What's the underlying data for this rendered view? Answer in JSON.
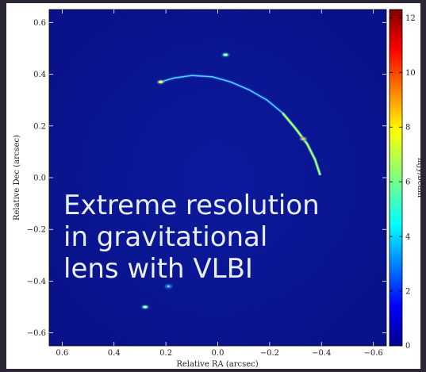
{
  "chart_data": {
    "type": "heatmap",
    "xlabel": "Relative RA (arcsec)",
    "ylabel": "Relative Dec (arcsec)",
    "x_ticks": [
      "0.6",
      "0.4",
      "0.2",
      "0.0",
      "−0.2",
      "−0.4",
      "−0.6"
    ],
    "y_ticks": [
      "0.6",
      "0.4",
      "0.2",
      "0.0",
      "−0.2",
      "−0.4",
      "−0.6"
    ],
    "xlim": [
      0.65,
      -0.65
    ],
    "ylim": [
      -0.65,
      0.65
    ],
    "x_inverted": true,
    "colorbar": {
      "label": "mJy/beam",
      "ticks": [
        "0",
        "2",
        "4",
        "6",
        "8",
        "10",
        "12"
      ],
      "range": [
        0,
        12.3
      ],
      "colormap": "jet"
    },
    "features": [
      {
        "name": "arc",
        "points": [
          [
            0.22,
            0.37
          ],
          [
            0.17,
            0.385
          ],
          [
            0.1,
            0.395
          ],
          [
            0.02,
            0.39
          ],
          [
            -0.05,
            0.37
          ],
          [
            -0.12,
            0.34
          ],
          [
            -0.19,
            0.3
          ],
          [
            -0.25,
            0.25
          ],
          [
            -0.3,
            0.19
          ],
          [
            -0.345,
            0.13
          ],
          [
            -0.375,
            0.07
          ],
          [
            -0.395,
            0.01
          ]
        ],
        "peak_mJy": 8
      },
      {
        "name": "bright-knot-arc-start",
        "ra": 0.22,
        "dec": 0.37,
        "mJy": 8
      },
      {
        "name": "bright-knot-arc-end",
        "ra": -0.33,
        "dec": 0.15,
        "mJy": 9
      },
      {
        "name": "compact-source-top",
        "ra": -0.03,
        "dec": 0.475,
        "mJy": 6
      },
      {
        "name": "compact-source-bottom-left",
        "ra": 0.28,
        "dec": -0.5,
        "mJy": 6
      },
      {
        "name": "faint-source-bottom",
        "ra": 0.19,
        "dec": -0.42,
        "mJy": 3
      }
    ]
  },
  "overlay_text": [
    "Extreme resolution",
    "in gravitational",
    "lens with VLBI"
  ],
  "colors": {
    "background": "#2b2536",
    "plot_background": "#0a1490",
    "overlay_text": "#e9eef2"
  }
}
